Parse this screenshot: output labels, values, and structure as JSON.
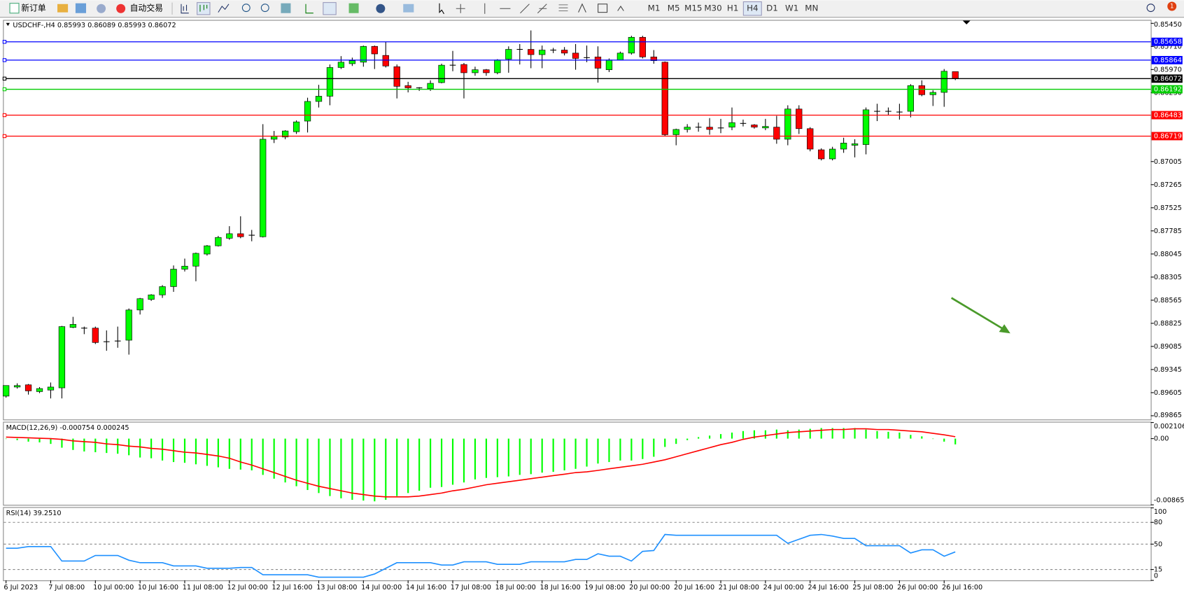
{
  "toolbar": {
    "new_order": "新订单",
    "auto_trading": "自动交易",
    "timeframes": [
      "M1",
      "M5",
      "M15",
      "M30",
      "H1",
      "H4",
      "D1",
      "W1",
      "MN"
    ],
    "active_timeframe": "H4",
    "notifications": "1"
  },
  "chart_data": [
    {
      "type": "candlestick",
      "title": "USDCHF-,H4  0.85993 0.86089 0.85993 0.86072",
      "up_color": "#ff0000",
      "down_color": "#00ff00",
      "categories": [
        "6 Jul 2023",
        null,
        null,
        null,
        "7 Jul 08:00",
        null,
        null,
        null,
        "10 Jul 00:00",
        null,
        null,
        null,
        "10 Jul 16:00",
        null,
        null,
        null,
        "11 Jul 08:00",
        null,
        null,
        null,
        "12 Jul 00:00",
        null,
        null,
        null,
        "12 Jul 16:00",
        null,
        null,
        null,
        "13 Jul 08:00",
        null,
        null,
        null,
        "14 Jul 00:00",
        null,
        null,
        null,
        "14 Jul 16:00",
        null,
        null,
        null,
        "17 Jul 08:00",
        null,
        null,
        null,
        "18 Jul 00:00",
        null,
        null,
        null,
        "18 Jul 16:00",
        null,
        null,
        null,
        "19 Jul 08:00",
        null,
        null,
        null,
        "20 Jul 00:00",
        null,
        null,
        null,
        "20 Jul 16:00",
        null,
        null,
        null,
        "21 Jul 08:00",
        null,
        null,
        null,
        "24 Jul 00:00",
        null,
        null,
        null,
        "24 Jul 16:00",
        null,
        null,
        null,
        "25 Jul 08:00",
        null,
        null,
        null,
        "26 Jul 00:00",
        null,
        null,
        null,
        "26 Jul 16:00",
        null
      ],
      "open": [
        0.89644,
        0.89542,
        0.89517,
        0.89593,
        0.89576,
        0.89551,
        0.88871,
        0.88888,
        0.88879,
        0.89041,
        0.89032,
        0.89015,
        0.88675,
        0.88556,
        0.88505,
        0.88412,
        0.88216,
        0.88182,
        0.88046,
        0.87953,
        0.87868,
        0.87817,
        0.87842,
        0.87851,
        0.86754,
        0.86729,
        0.86669,
        0.8655,
        0.86329,
        0.8627,
        0.85947,
        0.85904,
        0.85887,
        0.85709,
        0.85811,
        0.85938,
        0.86151,
        0.86185,
        0.86185,
        0.86117,
        0.8593,
        0.85913,
        0.86006,
        0.85972,
        0.86006,
        0.85853,
        0.85751,
        0.85743,
        0.85802,
        0.8576,
        0.85751,
        0.85785,
        0.85845,
        0.85828,
        0.85972,
        0.85862,
        0.85785,
        0.85607,
        0.85828,
        0.85887,
        0.86703,
        0.86644,
        0.86627,
        0.86618,
        0.86627,
        0.86618,
        0.86584,
        0.86593,
        0.86627,
        0.86618,
        0.86754,
        0.86414,
        0.86635,
        0.86873,
        0.86975,
        0.86865,
        0.86822,
        0.86814,
        0.86448,
        0.86448,
        0.86457,
        0.8644,
        0.86151,
        0.86253,
        0.86227,
        0.85993
      ],
      "high": [
        0.89661,
        0.89559,
        0.89627,
        0.8961,
        0.8967,
        0.8967,
        0.88879,
        0.88947,
        0.89058,
        0.89134,
        0.891,
        0.89177,
        0.88726,
        0.88573,
        0.88539,
        0.88471,
        0.88242,
        0.88352,
        0.88063,
        0.87961,
        0.87885,
        0.87868,
        0.87902,
        0.87859,
        0.86797,
        0.86754,
        0.86695,
        0.86678,
        0.86397,
        0.86372,
        0.85964,
        0.8593,
        0.85938,
        0.85964,
        0.85947,
        0.86295,
        0.86227,
        0.8621,
        0.8621,
        0.86125,
        0.85989,
        0.86295,
        0.8604,
        0.8604,
        0.86023,
        0.86006,
        0.85913,
        0.85955,
        0.85955,
        0.85785,
        0.85811,
        0.85972,
        0.85887,
        0.86117,
        0.85998,
        0.85862,
        0.85802,
        0.85845,
        0.85904,
        0.8672,
        0.86822,
        0.86678,
        0.86669,
        0.86703,
        0.86686,
        0.86652,
        0.8661,
        0.86635,
        0.86652,
        0.86805,
        0.86822,
        0.86695,
        0.8689,
        0.86992,
        0.86992,
        0.86907,
        0.86958,
        0.86924,
        0.8655,
        0.86482,
        0.86533,
        0.86508,
        0.8627,
        0.8638,
        0.86389,
        0.86089
      ],
      "low": [
        0.89525,
        0.895,
        0.89508,
        0.89542,
        0.89491,
        0.88854,
        0.88752,
        0.88862,
        0.88862,
        0.88905,
        0.88862,
        0.88658,
        0.88539,
        0.88497,
        0.88395,
        0.88174,
        0.88097,
        0.88029,
        0.87944,
        0.87842,
        0.87732,
        0.87621,
        0.87774,
        0.86584,
        0.86661,
        0.86652,
        0.86542,
        0.86287,
        0.86142,
        0.85913,
        0.85819,
        0.85836,
        0.857,
        0.857,
        0.85658,
        0.85913,
        0.86108,
        0.86168,
        0.86091,
        0.85904,
        0.8576,
        0.85896,
        0.85938,
        0.85964,
        0.85853,
        0.85709,
        0.85683,
        0.8553,
        0.857,
        0.85726,
        0.85717,
        0.85683,
        0.857,
        0.85709,
        0.85845,
        0.85768,
        0.8559,
        0.8559,
        0.85751,
        0.85879,
        0.86635,
        0.86584,
        0.86567,
        0.86516,
        0.86525,
        0.86397,
        0.86533,
        0.86584,
        0.86525,
        0.86491,
        0.86372,
        0.86372,
        0.86618,
        0.86856,
        0.86839,
        0.86737,
        0.86754,
        0.86397,
        0.86355,
        0.86397,
        0.86355,
        0.86134,
        0.86091,
        0.86202,
        0.85964,
        0.85993
      ],
      "close": [
        0.89525,
        0.89525,
        0.89585,
        0.89559,
        0.89542,
        0.88862,
        0.88837,
        0.88879,
        0.89041,
        0.89032,
        0.89024,
        0.88675,
        0.88548,
        0.88505,
        0.88412,
        0.88216,
        0.88182,
        0.88038,
        0.87953,
        0.87859,
        0.87817,
        0.87851,
        0.87834,
        0.86754,
        0.8672,
        0.86661,
        0.86559,
        0.86329,
        0.8627,
        0.85947,
        0.85887,
        0.8587,
        0.85709,
        0.85794,
        0.8593,
        0.86159,
        0.86176,
        0.86176,
        0.86125,
        0.85921,
        0.85921,
        0.86006,
        0.85972,
        0.86006,
        0.85862,
        0.85743,
        0.85743,
        0.85802,
        0.85751,
        0.85751,
        0.85785,
        0.85845,
        0.85836,
        0.85955,
        0.85862,
        0.85785,
        0.85607,
        0.85828,
        0.8587,
        0.86703,
        0.86644,
        0.86618,
        0.86618,
        0.86644,
        0.86635,
        0.86567,
        0.86576,
        0.86618,
        0.8661,
        0.86754,
        0.86414,
        0.86635,
        0.86865,
        0.86975,
        0.86865,
        0.86797,
        0.86805,
        0.86423,
        0.8644,
        0.8644,
        0.86448,
        0.86151,
        0.86253,
        0.86227,
        0.85989,
        0.86072
      ],
      "ylim": [
        0.89907,
        0.8542
      ],
      "yticks": [
        0.89865,
        0.89605,
        0.89345,
        0.89085,
        0.88825,
        0.88565,
        0.88305,
        0.88045,
        0.87785,
        0.87525,
        0.87265,
        0.87005,
        {
          "value": 0.8623,
          "label": "0.86230"
        },
        {
          "value": 0.8597,
          "label": "0.85970"
        },
        {
          "value": 0.8571,
          "label": "0.85710"
        },
        {
          "value": 0.8545,
          "label": "0.85450"
        }
      ],
      "levels": [
        {
          "value": 0.86719,
          "color": "#ff0000"
        },
        {
          "value": 0.86483,
          "color": "#ff0000"
        },
        {
          "value": 0.86192,
          "color": "#00cc00"
        },
        {
          "value": 0.85864,
          "color": "#0000ff"
        },
        {
          "value": 0.85658,
          "color": "#0000ff"
        }
      ],
      "grid": false
    },
    {
      "type": "macd",
      "title": "MACD(12,26,9) -0.000754 0.000245",
      "series": [
        {
          "color": "#00ff00",
          "values": [
            -4e-05,
            -0.000198,
            -0.000395,
            -0.000494,
            -0.000692,
            -0.001186,
            -0.001482,
            -0.00168,
            -0.001778,
            -0.001877,
            -0.001976,
            -0.002174,
            -0.00247,
            -0.002569,
            -0.002865,
            -0.003063,
            -0.003162,
            -0.003359,
            -0.003557,
            -0.003754,
            -0.003952,
            -0.004051,
            -0.00415,
            -0.004742,
            -0.005236,
            -0.00573,
            -0.006224,
            -0.006718,
            -0.007114,
            -0.007509,
            -0.007805,
            -0.008003,
            -0.008102,
            -0.0082,
            -0.008003,
            -0.007509,
            -0.007114,
            -0.006817,
            -0.006422,
            -0.006323,
            -0.006027,
            -0.00573,
            -0.005335,
            -0.005138,
            -0.005039,
            -0.00494,
            -0.004742,
            -0.004644,
            -0.004446,
            -0.004347,
            -0.00415,
            -0.003952,
            -0.003656,
            -0.00326,
            -0.003063,
            -0.002865,
            -0.002865,
            -0.002668,
            -0.002371,
            -0.001087,
            -0.000692,
            -0.000198,
            0.000198,
            0.000395,
            0.000593,
            0.00079,
            0.000988,
            0.001087,
            0.001087,
            0.001186,
            0.001087,
            0.001186,
            0.001284,
            0.001383,
            0.001383,
            0.001383,
            0.001383,
            0.001186,
            0.000988,
            0.000889,
            0.00079,
            0.000494,
            0.000296,
            0,
            -0.000395,
            -0.000754
          ]
        },
        {
          "color": "#ff0000",
          "values": [
            0.000198,
            0.000148,
            9.9e-05,
            4.9e-05,
            0,
            -9.9e-05,
            -0.000296,
            -0.000395,
            -0.000494,
            -0.000692,
            -0.00079,
            -0.000988,
            -0.001087,
            -0.001284,
            -0.001383,
            -0.001581,
            -0.001778,
            -0.001877,
            -0.002075,
            -0.002272,
            -0.002569,
            -0.003063,
            -0.003458,
            -0.003952,
            -0.004446,
            -0.00494,
            -0.005434,
            -0.005829,
            -0.006224,
            -0.006521,
            -0.006817,
            -0.007114,
            -0.007311,
            -0.007509,
            -0.007608,
            -0.007608,
            -0.007608,
            -0.007509,
            -0.007311,
            -0.007114,
            -0.006817,
            -0.00662,
            -0.006323,
            -0.006027,
            -0.005829,
            -0.005632,
            -0.005434,
            -0.005236,
            -0.005039,
            -0.004841,
            -0.004644,
            -0.004446,
            -0.004347,
            -0.00415,
            -0.003952,
            -0.003754,
            -0.003557,
            -0.003359,
            -0.003063,
            -0.002766,
            -0.002371,
            -0.001976,
            -0.001581,
            -0.001186,
            -0.00079,
            -0.000494,
            -9.9e-05,
            0.000198,
            0.000395,
            0.000593,
            0.00079,
            0.000889,
            0.000988,
            0.001087,
            0.001186,
            0.001186,
            0.001284,
            0.001284,
            0.001186,
            0.001186,
            0.001087,
            0.000988,
            0.000889,
            0.000692,
            0.000494,
            0.000245
          ]
        }
      ],
      "ylim": [
        -0.008658,
        0.002106
      ],
      "yticks": [
        0.002106,
        {
          "value": 0,
          "label": "0.00"
        },
        -0.008658
      ]
    },
    {
      "type": "line",
      "title": "RSI(14) 39.2510",
      "color": "#1e90ff",
      "values": [
        44.4,
        44.4,
        46.7,
        46.7,
        46.7,
        26.7,
        26.7,
        26.7,
        34.4,
        34.4,
        34.4,
        27.8,
        24.4,
        24.4,
        24.4,
        20,
        20,
        20,
        16.7,
        16.7,
        16.7,
        17.8,
        17.8,
        7.8,
        7.8,
        7.8,
        7.8,
        7.8,
        4.4,
        4.4,
        4.4,
        4.4,
        4.4,
        8.9,
        16.7,
        24.4,
        24.4,
        24.4,
        24.4,
        21.1,
        21.1,
        25.6,
        25.6,
        25.6,
        22.2,
        22.2,
        22.2,
        25.6,
        25.6,
        25.6,
        25.6,
        28.9,
        28.9,
        36.7,
        33.3,
        33.3,
        26.7,
        40,
        41.1,
        63.3,
        62.2,
        62.2,
        62.2,
        62.2,
        62.2,
        62.2,
        62.2,
        62.2,
        62.2,
        62.2,
        51.1,
        56.7,
        62.2,
        63.3,
        61.1,
        57.8,
        57.8,
        47.8,
        47.8,
        47.8,
        47.8,
        37.8,
        42.2,
        42.2,
        33.3,
        39.251
      ],
      "ylim": [
        0,
        100
      ],
      "yticks": [
        100,
        80,
        50,
        15,
        0
      ],
      "grid": "dashed"
    }
  ]
}
